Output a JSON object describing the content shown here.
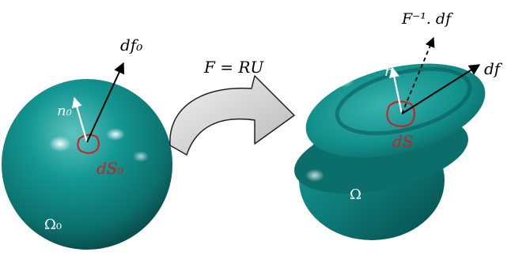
{
  "labels": {
    "df0": "df₀",
    "n0": "n₀",
    "dS0": "dS₀",
    "omega0": "Ω₀",
    "mapping": "F = RU",
    "finv_df": "F⁻¹. df",
    "n": "n",
    "df": "df",
    "dS": "dS",
    "omega": "Ω"
  },
  "colors": {
    "body": "#0f7f7c",
    "body_dark": "#064c4b",
    "highlight": "#dff7f5",
    "patch": "#cc1f1f",
    "arrow": "#000000",
    "normal": "#ffffff",
    "curved_arrow_fill": "#d2d2d2"
  }
}
